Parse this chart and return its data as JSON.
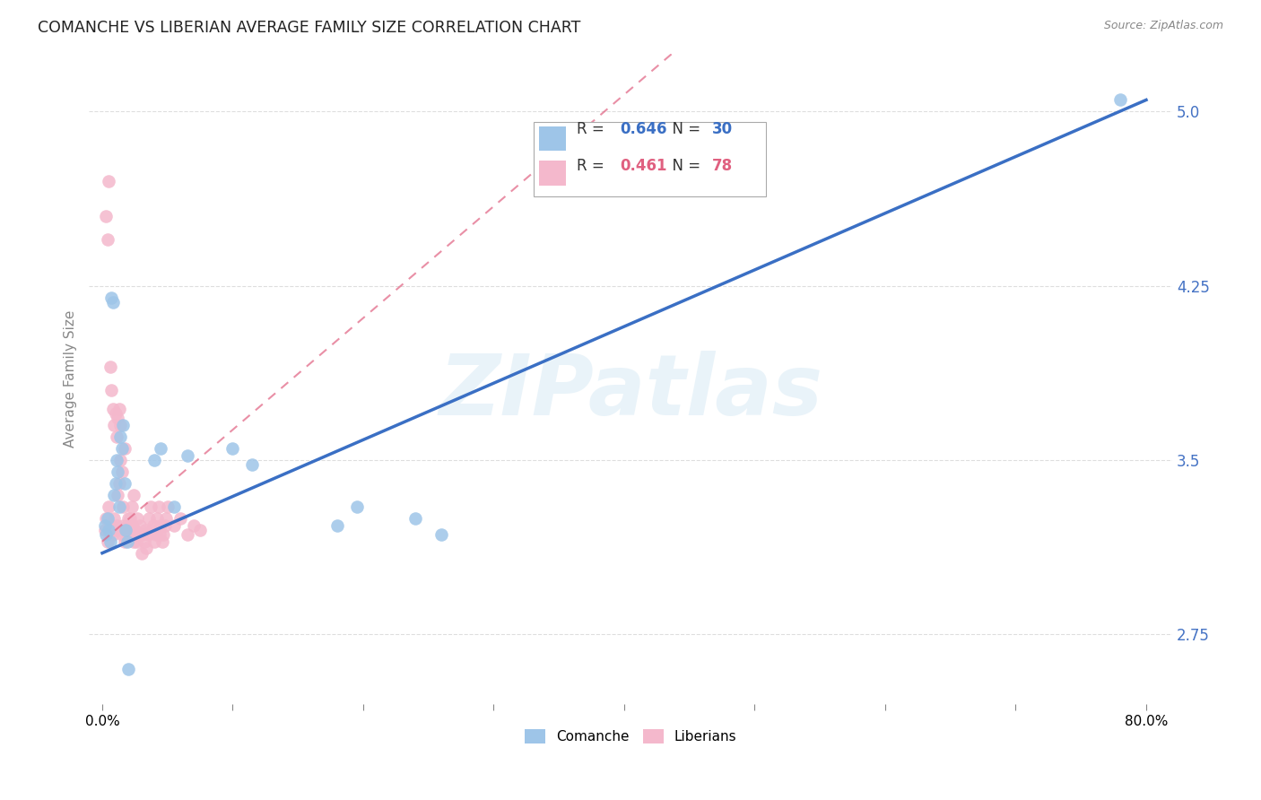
{
  "title": "COMANCHE VS LIBERIAN AVERAGE FAMILY SIZE CORRELATION CHART",
  "source": "Source: ZipAtlas.com",
  "ylabel": "Average Family Size",
  "yticks": [
    2.75,
    3.5,
    4.25,
    5.0
  ],
  "ytick_color": "#4472c4",
  "background_color": "#ffffff",
  "grid_color": "#c8c8c8",
  "watermark_text": "ZIPatlas",
  "comanche_color": "#9ec5e8",
  "liberian_color": "#f4b8cc",
  "comanche_line_color": "#3a6fc4",
  "liberian_line_color": "#e06080",
  "comanche_r": "0.646",
  "comanche_n": "30",
  "liberian_r": "0.461",
  "liberian_n": "78",
  "xmin": 0.0,
  "xmax": 0.8,
  "ymin": 2.45,
  "ymax": 5.25,
  "comanche_x": [
    0.002,
    0.003,
    0.004,
    0.005,
    0.006,
    0.007,
    0.008,
    0.009,
    0.01,
    0.011,
    0.012,
    0.013,
    0.014,
    0.015,
    0.016,
    0.017,
    0.018,
    0.019,
    0.04,
    0.045,
    0.055,
    0.065,
    0.1,
    0.115,
    0.18,
    0.195,
    0.24,
    0.26,
    0.78,
    0.02
  ],
  "comanche_y": [
    3.22,
    3.18,
    3.25,
    3.2,
    3.15,
    4.2,
    4.18,
    3.35,
    3.4,
    3.5,
    3.45,
    3.3,
    3.6,
    3.55,
    3.65,
    3.4,
    3.2,
    3.15,
    3.5,
    3.55,
    3.3,
    3.52,
    3.55,
    3.48,
    3.22,
    3.3,
    3.25,
    3.18,
    5.05,
    2.6
  ],
  "liberian_x": [
    0.002,
    0.003,
    0.004,
    0.005,
    0.006,
    0.007,
    0.008,
    0.009,
    0.01,
    0.011,
    0.012,
    0.013,
    0.014,
    0.015,
    0.016,
    0.017,
    0.018,
    0.019,
    0.02,
    0.021,
    0.022,
    0.023,
    0.024,
    0.025,
    0.026,
    0.027,
    0.028,
    0.029,
    0.03,
    0.031,
    0.032,
    0.033,
    0.034,
    0.035,
    0.036,
    0.037,
    0.038,
    0.039,
    0.04,
    0.041,
    0.042,
    0.043,
    0.044,
    0.045,
    0.046,
    0.047,
    0.048,
    0.049,
    0.05,
    0.055,
    0.06,
    0.065,
    0.07,
    0.075,
    0.003,
    0.004,
    0.005,
    0.006,
    0.007,
    0.008,
    0.009,
    0.01,
    0.011,
    0.012,
    0.013,
    0.014,
    0.015,
    0.016,
    0.017,
    0.018,
    0.019,
    0.02,
    0.021,
    0.022,
    0.023,
    0.024,
    0.025,
    0.026
  ],
  "liberian_y": [
    3.2,
    3.25,
    3.15,
    3.3,
    3.2,
    3.22,
    3.18,
    3.25,
    3.2,
    3.22,
    3.35,
    3.4,
    3.5,
    3.45,
    3.3,
    3.55,
    3.18,
    3.22,
    3.25,
    3.18,
    3.22,
    3.3,
    3.35,
    3.2,
    3.15,
    3.25,
    3.18,
    3.22,
    3.1,
    3.18,
    3.15,
    3.2,
    3.12,
    3.18,
    3.25,
    3.3,
    3.2,
    3.22,
    3.15,
    3.18,
    3.25,
    3.3,
    3.18,
    3.22,
    3.15,
    3.18,
    3.22,
    3.25,
    3.3,
    3.22,
    3.25,
    3.18,
    3.22,
    3.2,
    4.55,
    4.45,
    4.7,
    3.9,
    3.8,
    3.72,
    3.65,
    3.7,
    3.6,
    3.68,
    3.72,
    3.65,
    3.18,
    3.22,
    3.15,
    3.18,
    3.22,
    3.2,
    3.25,
    3.18,
    3.22,
    3.15,
    3.2,
    3.18
  ]
}
